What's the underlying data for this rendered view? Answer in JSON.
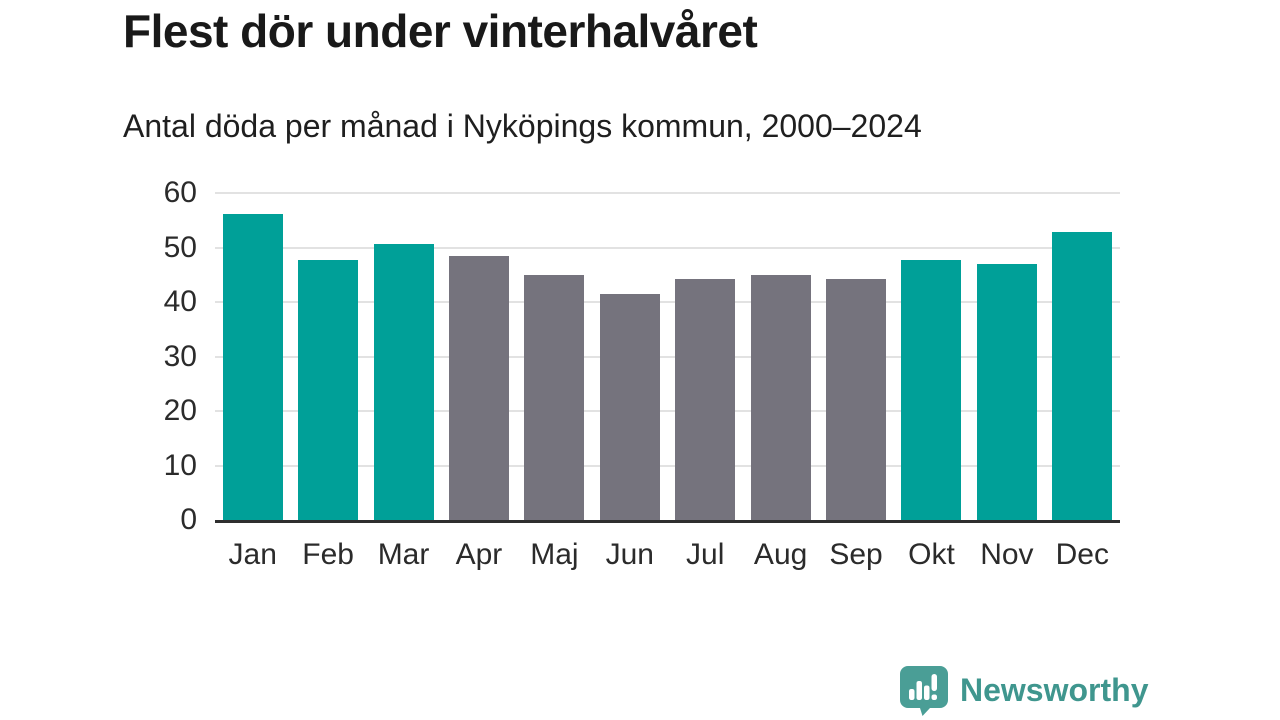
{
  "chart_data": {
    "type": "bar",
    "title": "Flest dör under vinterhalvåret",
    "subtitle": "Antal döda per månad i Nyköpings kommun, 2000–2024",
    "categories": [
      "Jan",
      "Feb",
      "Mar",
      "Apr",
      "Maj",
      "Jun",
      "Jul",
      "Aug",
      "Sep",
      "Okt",
      "Nov",
      "Dec"
    ],
    "values": [
      56.2,
      47.8,
      50.6,
      48.4,
      44.9,
      41.5,
      44.2,
      45.0,
      44.3,
      47.7,
      46.9,
      52.8
    ],
    "bar_color_keys": [
      "winter",
      "winter",
      "winter",
      "summer",
      "summer",
      "summer",
      "summer",
      "summer",
      "summer",
      "winter",
      "winter",
      "winter"
    ],
    "colors": {
      "winter": "#00a098",
      "summer": "#75737d",
      "gridline": "#e2e2e2",
      "axis_line": "#2e2e2e",
      "tick_text": "#2b2b2b",
      "title_text": "#191919"
    },
    "xlabel": "",
    "ylabel": "",
    "ylim": [
      0,
      60
    ],
    "yticks": [
      0,
      10,
      20,
      30,
      40,
      50,
      60
    ],
    "grid": true,
    "legend_position": "none"
  },
  "footer": {
    "brand": "Newsworthy",
    "brand_color": "#3f968e",
    "logo_color": "#4a9e96",
    "logo_icon": "newsworthy-badge-icon"
  }
}
